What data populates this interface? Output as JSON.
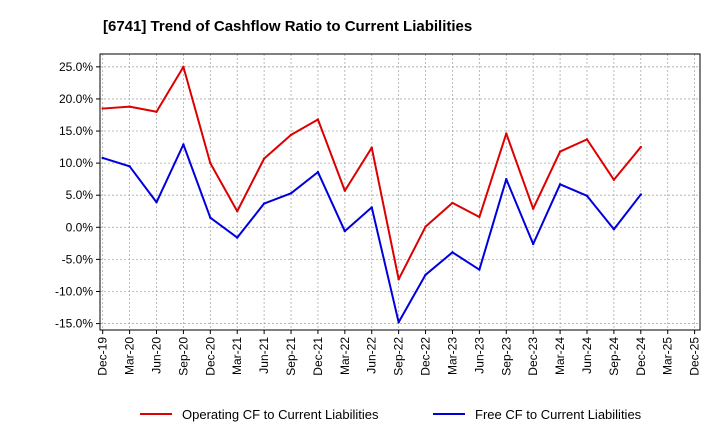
{
  "chart_data": {
    "type": "line",
    "title": "[6741]  Trend of Cashflow Ratio to Current Liabilities",
    "xlabel": "",
    "ylabel": "",
    "ylim": [
      -16,
      27
    ],
    "yticks": [
      "25.0%",
      "20.0%",
      "15.0%",
      "10.0%",
      "5.0%",
      "0.0%",
      "-5.0%",
      "-10.0%",
      "-15.0%"
    ],
    "ytick_values": [
      25,
      20,
      15,
      10,
      5,
      0,
      -5,
      -10,
      -15
    ],
    "xticks": [
      "Dec-19",
      "Mar-20",
      "Jun-20",
      "Sep-20",
      "Dec-20",
      "Mar-21",
      "Jun-21",
      "Sep-21",
      "Dec-21",
      "Mar-22",
      "Jun-22",
      "Sep-22",
      "Dec-22",
      "Mar-23",
      "Jun-23",
      "Sep-23",
      "Dec-23",
      "Mar-24",
      "Jun-24",
      "Sep-24",
      "Dec-24",
      "Mar-25",
      "Dec-25"
    ],
    "grid": true,
    "legend_position": "bottom",
    "series": [
      {
        "name": "Operating CF to Current Liabilities",
        "color": "#dd0000",
        "values": [
          18.5,
          18.8,
          18.0,
          25.0,
          10.0,
          2.5,
          10.7,
          14.4,
          16.8,
          5.7,
          12.4,
          -8.1,
          0.1,
          3.8,
          1.6,
          14.6,
          2.9,
          11.8,
          13.7,
          7.4,
          12.5
        ]
      },
      {
        "name": "Free CF to Current Liabilities",
        "color": "#0000dd",
        "values": [
          10.8,
          9.5,
          3.9,
          12.9,
          1.5,
          -1.6,
          3.7,
          5.3,
          8.6,
          -0.6,
          3.1,
          -14.8,
          -7.4,
          -3.9,
          -6.6,
          7.5,
          -2.6,
          6.7,
          4.9,
          -0.3,
          5.1
        ]
      }
    ]
  }
}
